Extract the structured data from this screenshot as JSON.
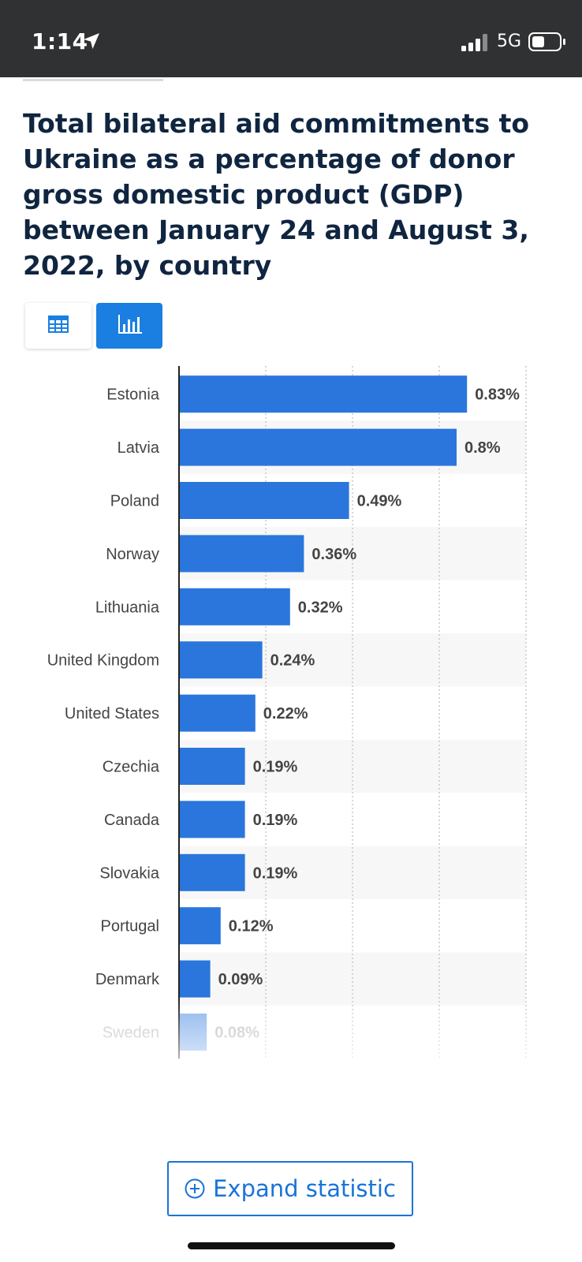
{
  "status_bar": {
    "time": "1:14",
    "network": "5G"
  },
  "chart_title": "Total bilateral aid commitments to Ukraine as a percentage of donor gross domestic product (GDP) between January 24 and August 3, 2022, by country",
  "expand_button": {
    "label": "Expand statistic"
  },
  "icons": {
    "location": "location-arrow-icon",
    "signal": "cellular-signal-icon",
    "battery": "battery-icon",
    "table_view": "table-icon",
    "chart_view": "bar-chart-icon",
    "expand": "plus-circle-icon"
  },
  "colors": {
    "bar": "#2a76dc",
    "accent": "#1a7fe0",
    "title": "#0f2540",
    "status_bar": "#303133"
  },
  "chart_data": {
    "type": "bar",
    "orientation": "horizontal",
    "categories": [
      "Estonia",
      "Latvia",
      "Poland",
      "Norway",
      "Lithuania",
      "United Kingdom",
      "United States",
      "Czechia",
      "Canada",
      "Slovakia",
      "Portugal",
      "Denmark",
      "Sweden"
    ],
    "values": [
      0.83,
      0.8,
      0.49,
      0.36,
      0.32,
      0.24,
      0.22,
      0.19,
      0.19,
      0.19,
      0.12,
      0.09,
      0.08
    ],
    "labels": [
      "0.83%",
      "0.8%",
      "0.49%",
      "0.36%",
      "0.32%",
      "0.24%",
      "0.22%",
      "0.19%",
      "0.19%",
      "0.19%",
      "0.12%",
      "0.09%",
      "0.08%"
    ],
    "xlim": [
      0,
      1
    ],
    "grid": true
  }
}
